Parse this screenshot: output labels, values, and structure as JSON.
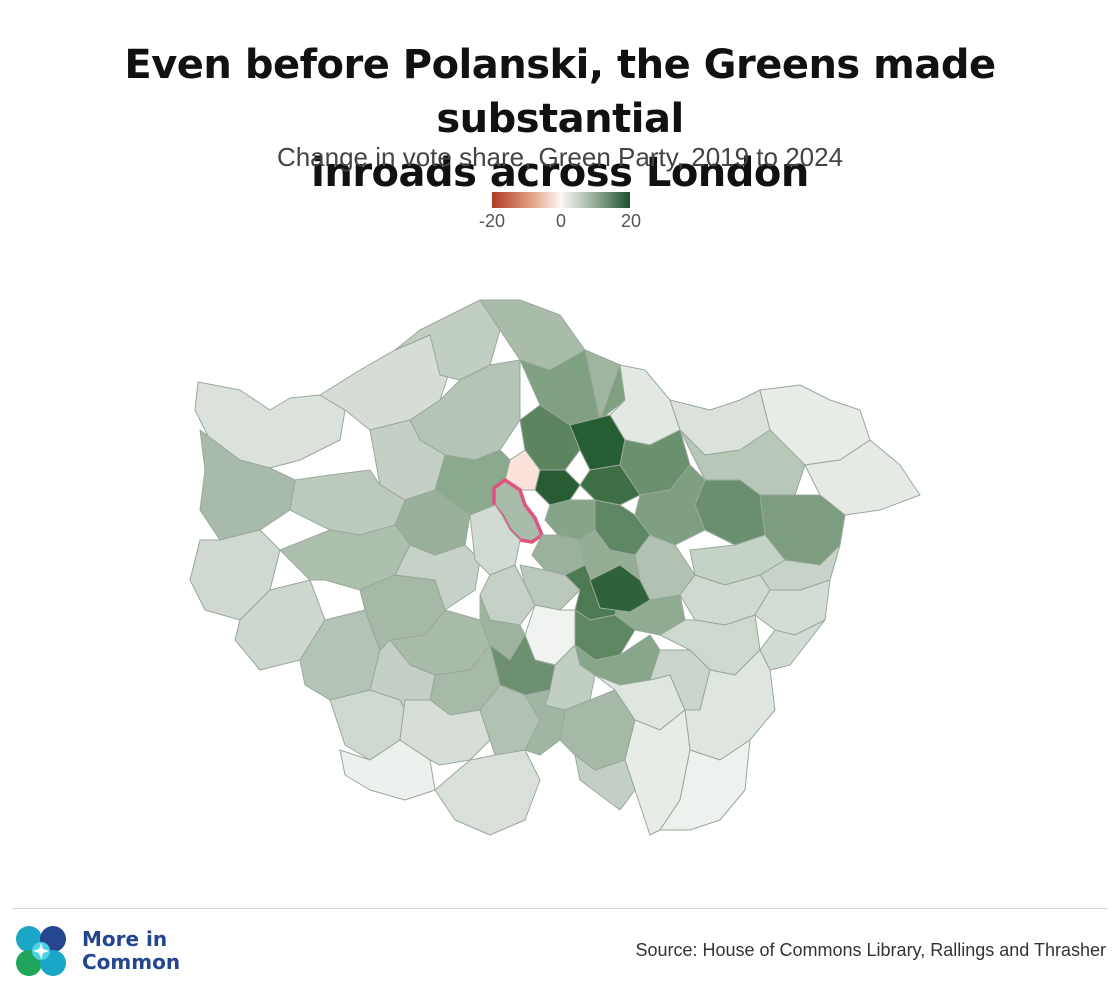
{
  "header": {
    "title_line1": "Even before Polanski, the Greens made substantial",
    "title_line2": "inroads across London",
    "subtitle": "Change in vote share, Green Party, 2019 to 2024"
  },
  "legend": {
    "min_label": "-20",
    "mid_label": "0",
    "max_label": "20",
    "color_low": "#b13a22",
    "color_mid": "#fbf8f5",
    "color_high": "#1e4e2c"
  },
  "map": {
    "highlight_color": "#e0527f",
    "border_color": "#9aa89c"
  },
  "footer": {
    "logo_line1": "More in",
    "logo_line2": "Common",
    "source": "Source: House of Commons Library, Rallings and Thrasher"
  }
}
